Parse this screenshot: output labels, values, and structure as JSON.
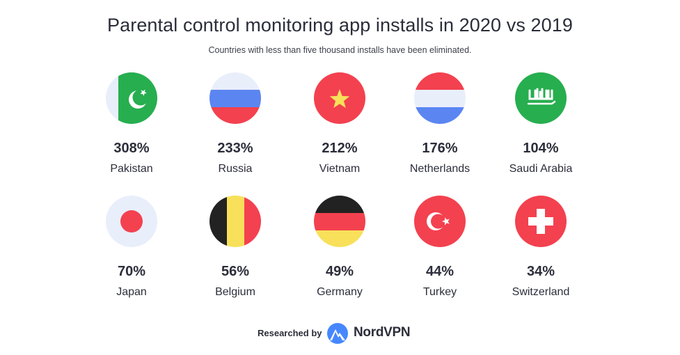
{
  "chart_data": {
    "type": "table",
    "title": "Parental control monitoring app installs in 2020 vs 2019",
    "subtitle": "Countries with less than five thousand installs have been eliminated.",
    "categories": [
      "Pakistan",
      "Russia",
      "Vietnam",
      "Netherlands",
      "Saudi Arabia",
      "Japan",
      "Belgium",
      "Germany",
      "Turkey",
      "Switzerland"
    ],
    "values": [
      308,
      233,
      212,
      176,
      104,
      70,
      56,
      49,
      44,
      34
    ],
    "unit": "%",
    "value_labels": [
      "308%",
      "233%",
      "212%",
      "176%",
      "104%",
      "70%",
      "56%",
      "49%",
      "44%",
      "34%"
    ],
    "layout": "2 rows of 5 flag icons"
  },
  "flags": [
    "pakistan-flag-icon",
    "russia-flag-icon",
    "vietnam-flag-icon",
    "netherlands-flag-icon",
    "saudi-arabia-flag-icon",
    "japan-flag-icon",
    "belgium-flag-icon",
    "germany-flag-icon",
    "turkey-flag-icon",
    "switzerland-flag-icon"
  ],
  "colors": {
    "green": "#27ae4f",
    "red": "#f3414f",
    "blue": "#5b85f1",
    "yellow": "#f8e05a",
    "black": "#222222",
    "pale": "#e9eefb",
    "nordvpn_blue": "#4687ff"
  },
  "footer": {
    "researched_by": "Researched by",
    "brand": "NordVPN",
    "logo_icon": "nordvpn-mountain-icon"
  }
}
